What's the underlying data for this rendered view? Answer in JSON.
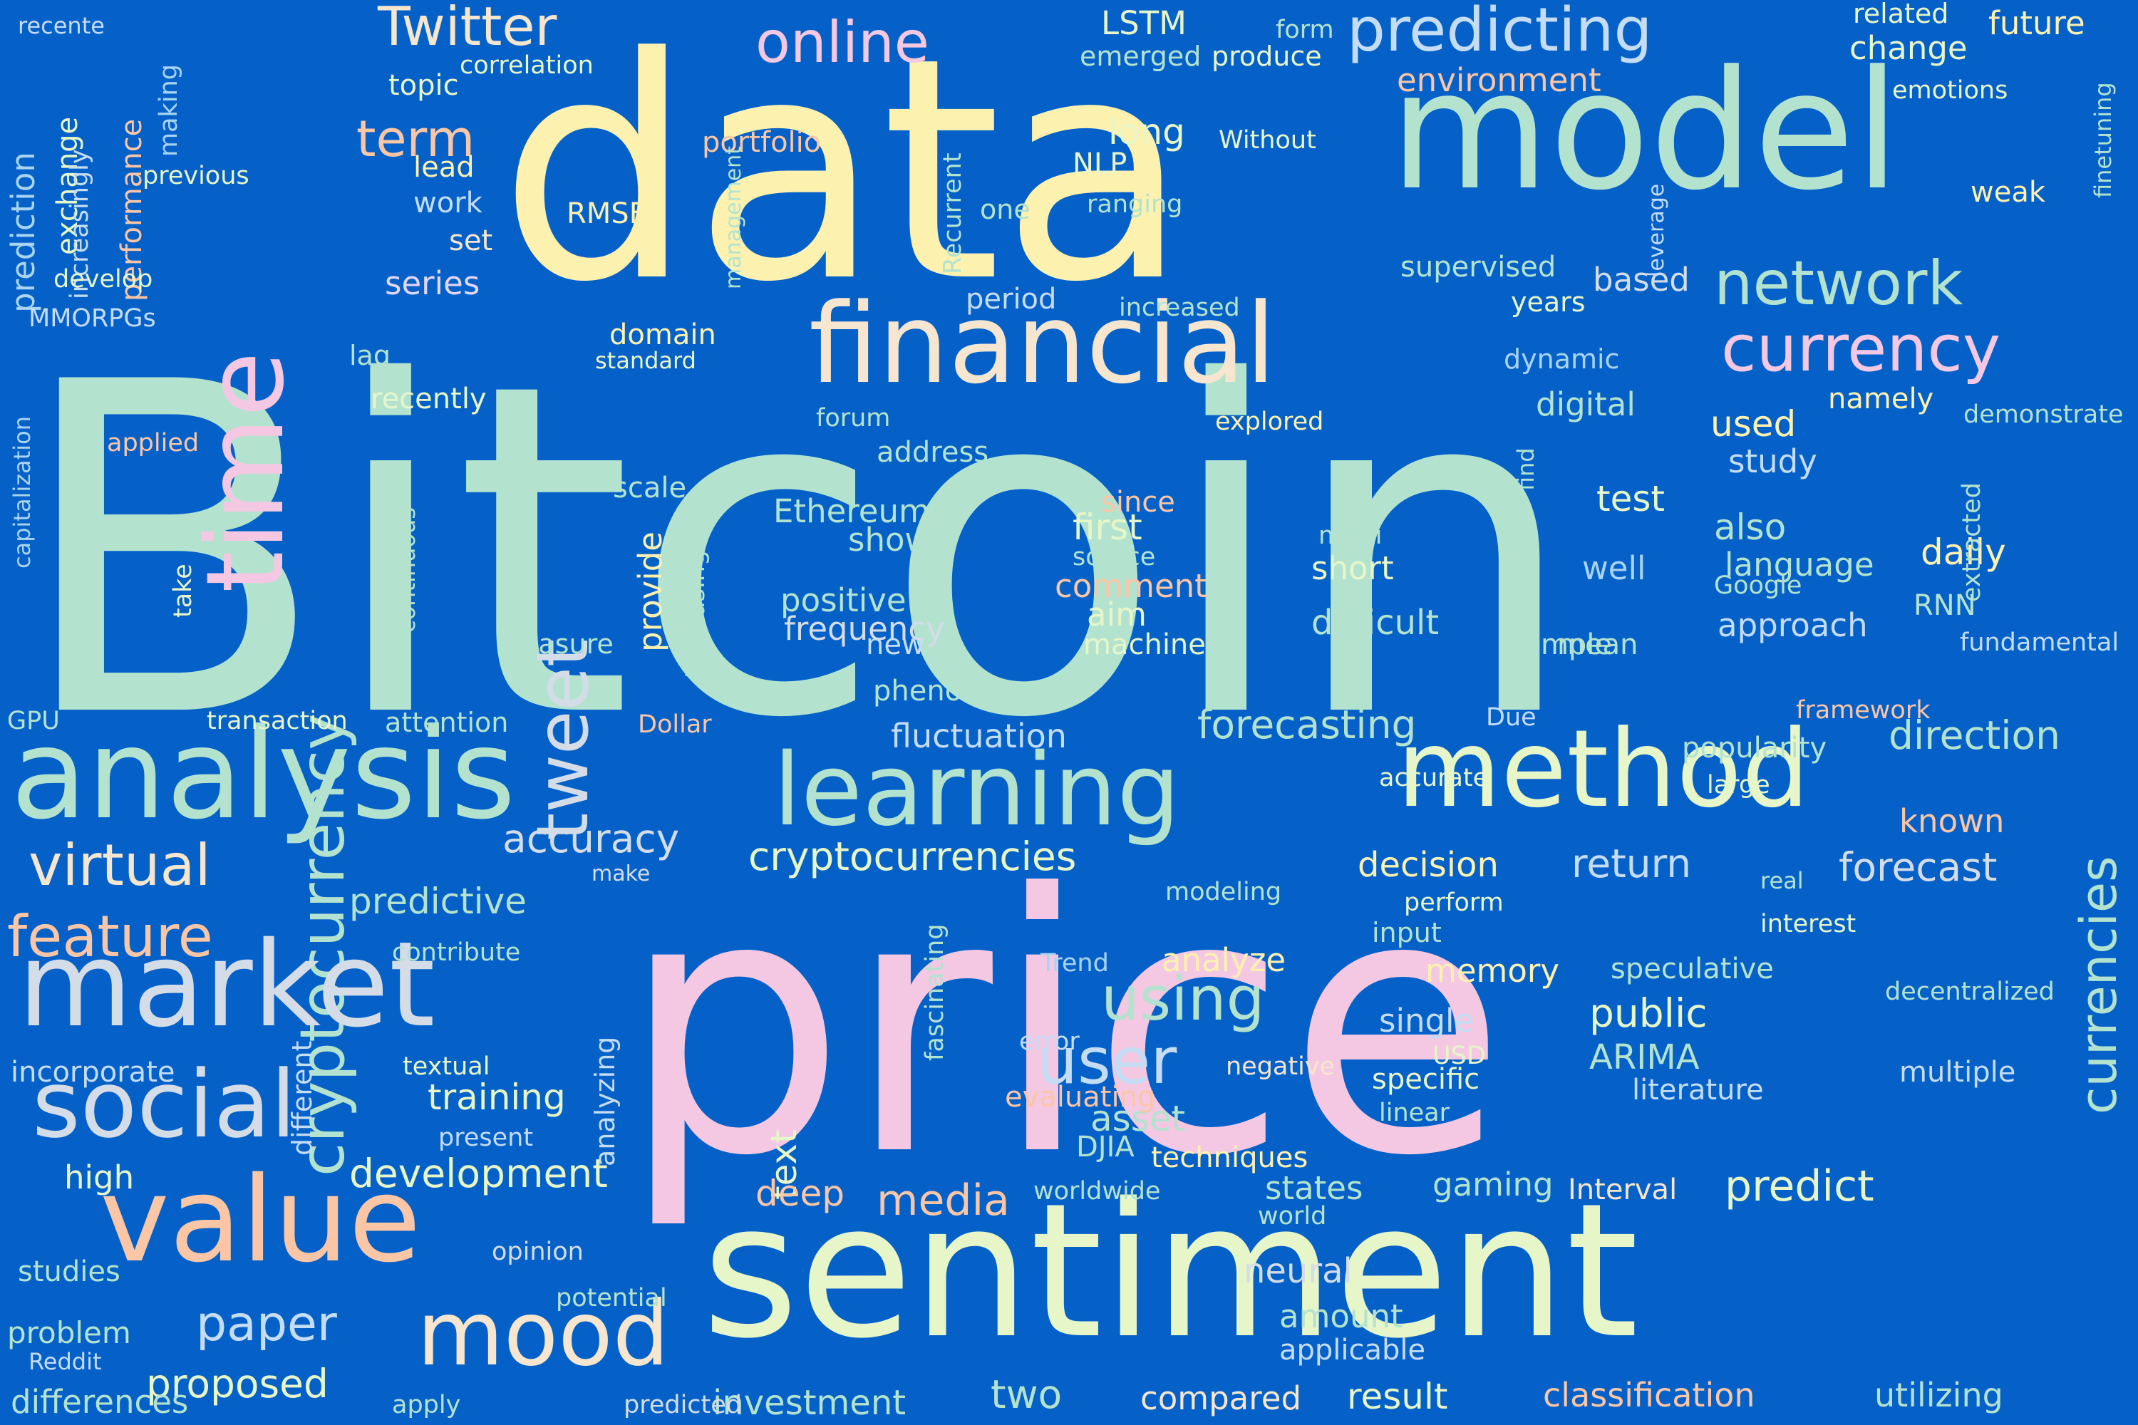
{
  "palette": {
    "background": "#0561c8",
    "mint": "#b3e3cf",
    "cream": "#fdf1b0",
    "pink": "#f4c8e2",
    "peach": "#fbc6a6",
    "lightblue": "#c4dcf4",
    "paleyellow": "#e7f6c9",
    "sand": "#f6e6cf",
    "lavender": "#e3d6f2",
    "sky": "#a9d4f0",
    "silver": "#d4dde7",
    "white": "#eef3f7"
  },
  "words": [
    "Bitcoin",
    "price",
    "data",
    "sentiment",
    "model",
    "analysis",
    "learning",
    "method",
    "financial",
    "time",
    "cryptocurrency",
    "market",
    "value",
    "tweet",
    "social",
    "mood",
    "network",
    "currency",
    "predicting",
    "Twitter",
    "online",
    "currencies",
    "virtual",
    "feature",
    "using",
    "user",
    "term",
    "paper",
    "cryptocurrencies",
    "forecasting",
    "fluctuation",
    "direction",
    "forecast",
    "return",
    "decision",
    "development",
    "media",
    "predict",
    "neural",
    "proposed",
    "investment",
    "result",
    "classification",
    "utilizing",
    "two",
    "compared",
    "text",
    "deep",
    "states",
    "gaming",
    "Interval",
    "accuracy",
    "predictive",
    "training",
    "asset",
    "public",
    "ARIMA",
    "speculative",
    "literature",
    "multiple",
    "daily",
    "also",
    "study",
    "used",
    "based",
    "digital",
    "namely",
    "years",
    "dynamic",
    "supervised",
    "environment",
    "change",
    "future",
    "related",
    "emotions",
    "leverage",
    "finetuning",
    "weak",
    "Without",
    "LSTM",
    "emerged",
    "produce",
    "form",
    "correlation",
    "topic",
    "lead",
    "work",
    "set",
    "series",
    "lag",
    "domain",
    "standard",
    "recently",
    "portfolio",
    "RMSE",
    "NLP",
    "one",
    "ranging",
    "Recurrent",
    "management",
    "period",
    "increased",
    "long",
    "prediction",
    "exchange",
    "increasingly",
    "performance",
    "making",
    "recente",
    "previous",
    "develop",
    "MMORPGs",
    "capitalization",
    "applied",
    "take",
    "continuous",
    "pretrained",
    "scale",
    "provide",
    "increasing",
    "measure",
    "Ethereum",
    "show",
    "positive",
    "frequency",
    "new",
    "first",
    "source",
    "comment",
    "aim",
    "machine",
    "since",
    "multi",
    "short",
    "difficult",
    "find",
    "test",
    "well",
    "simple",
    "mean",
    "language",
    "Google",
    "approach",
    "RNN",
    "fundamental",
    "extracted",
    "demonstrate",
    "forum",
    "address",
    "explored",
    "GPU",
    "transaction",
    "attention",
    "Dollar",
    "phenomenon",
    "Due",
    "framework",
    "popularity",
    "large",
    "known",
    "real",
    "accurate",
    "make",
    "modeling",
    "perform",
    "input",
    "interest",
    "analyze",
    "Trend",
    "memory",
    "single",
    "decentralized",
    "error",
    "USD",
    "negative",
    "specific",
    "evaluating",
    "linear",
    "DJIA",
    "techniques",
    "worldwide",
    "world",
    "amount",
    "applicable",
    "contribute",
    "textual",
    "incorporate",
    "different",
    "analyzing",
    "fascinating",
    "present",
    "high",
    "studies",
    "opinion",
    "potential",
    "problem",
    "Reddit",
    "differences",
    "apply",
    "predicted"
  ]
}
